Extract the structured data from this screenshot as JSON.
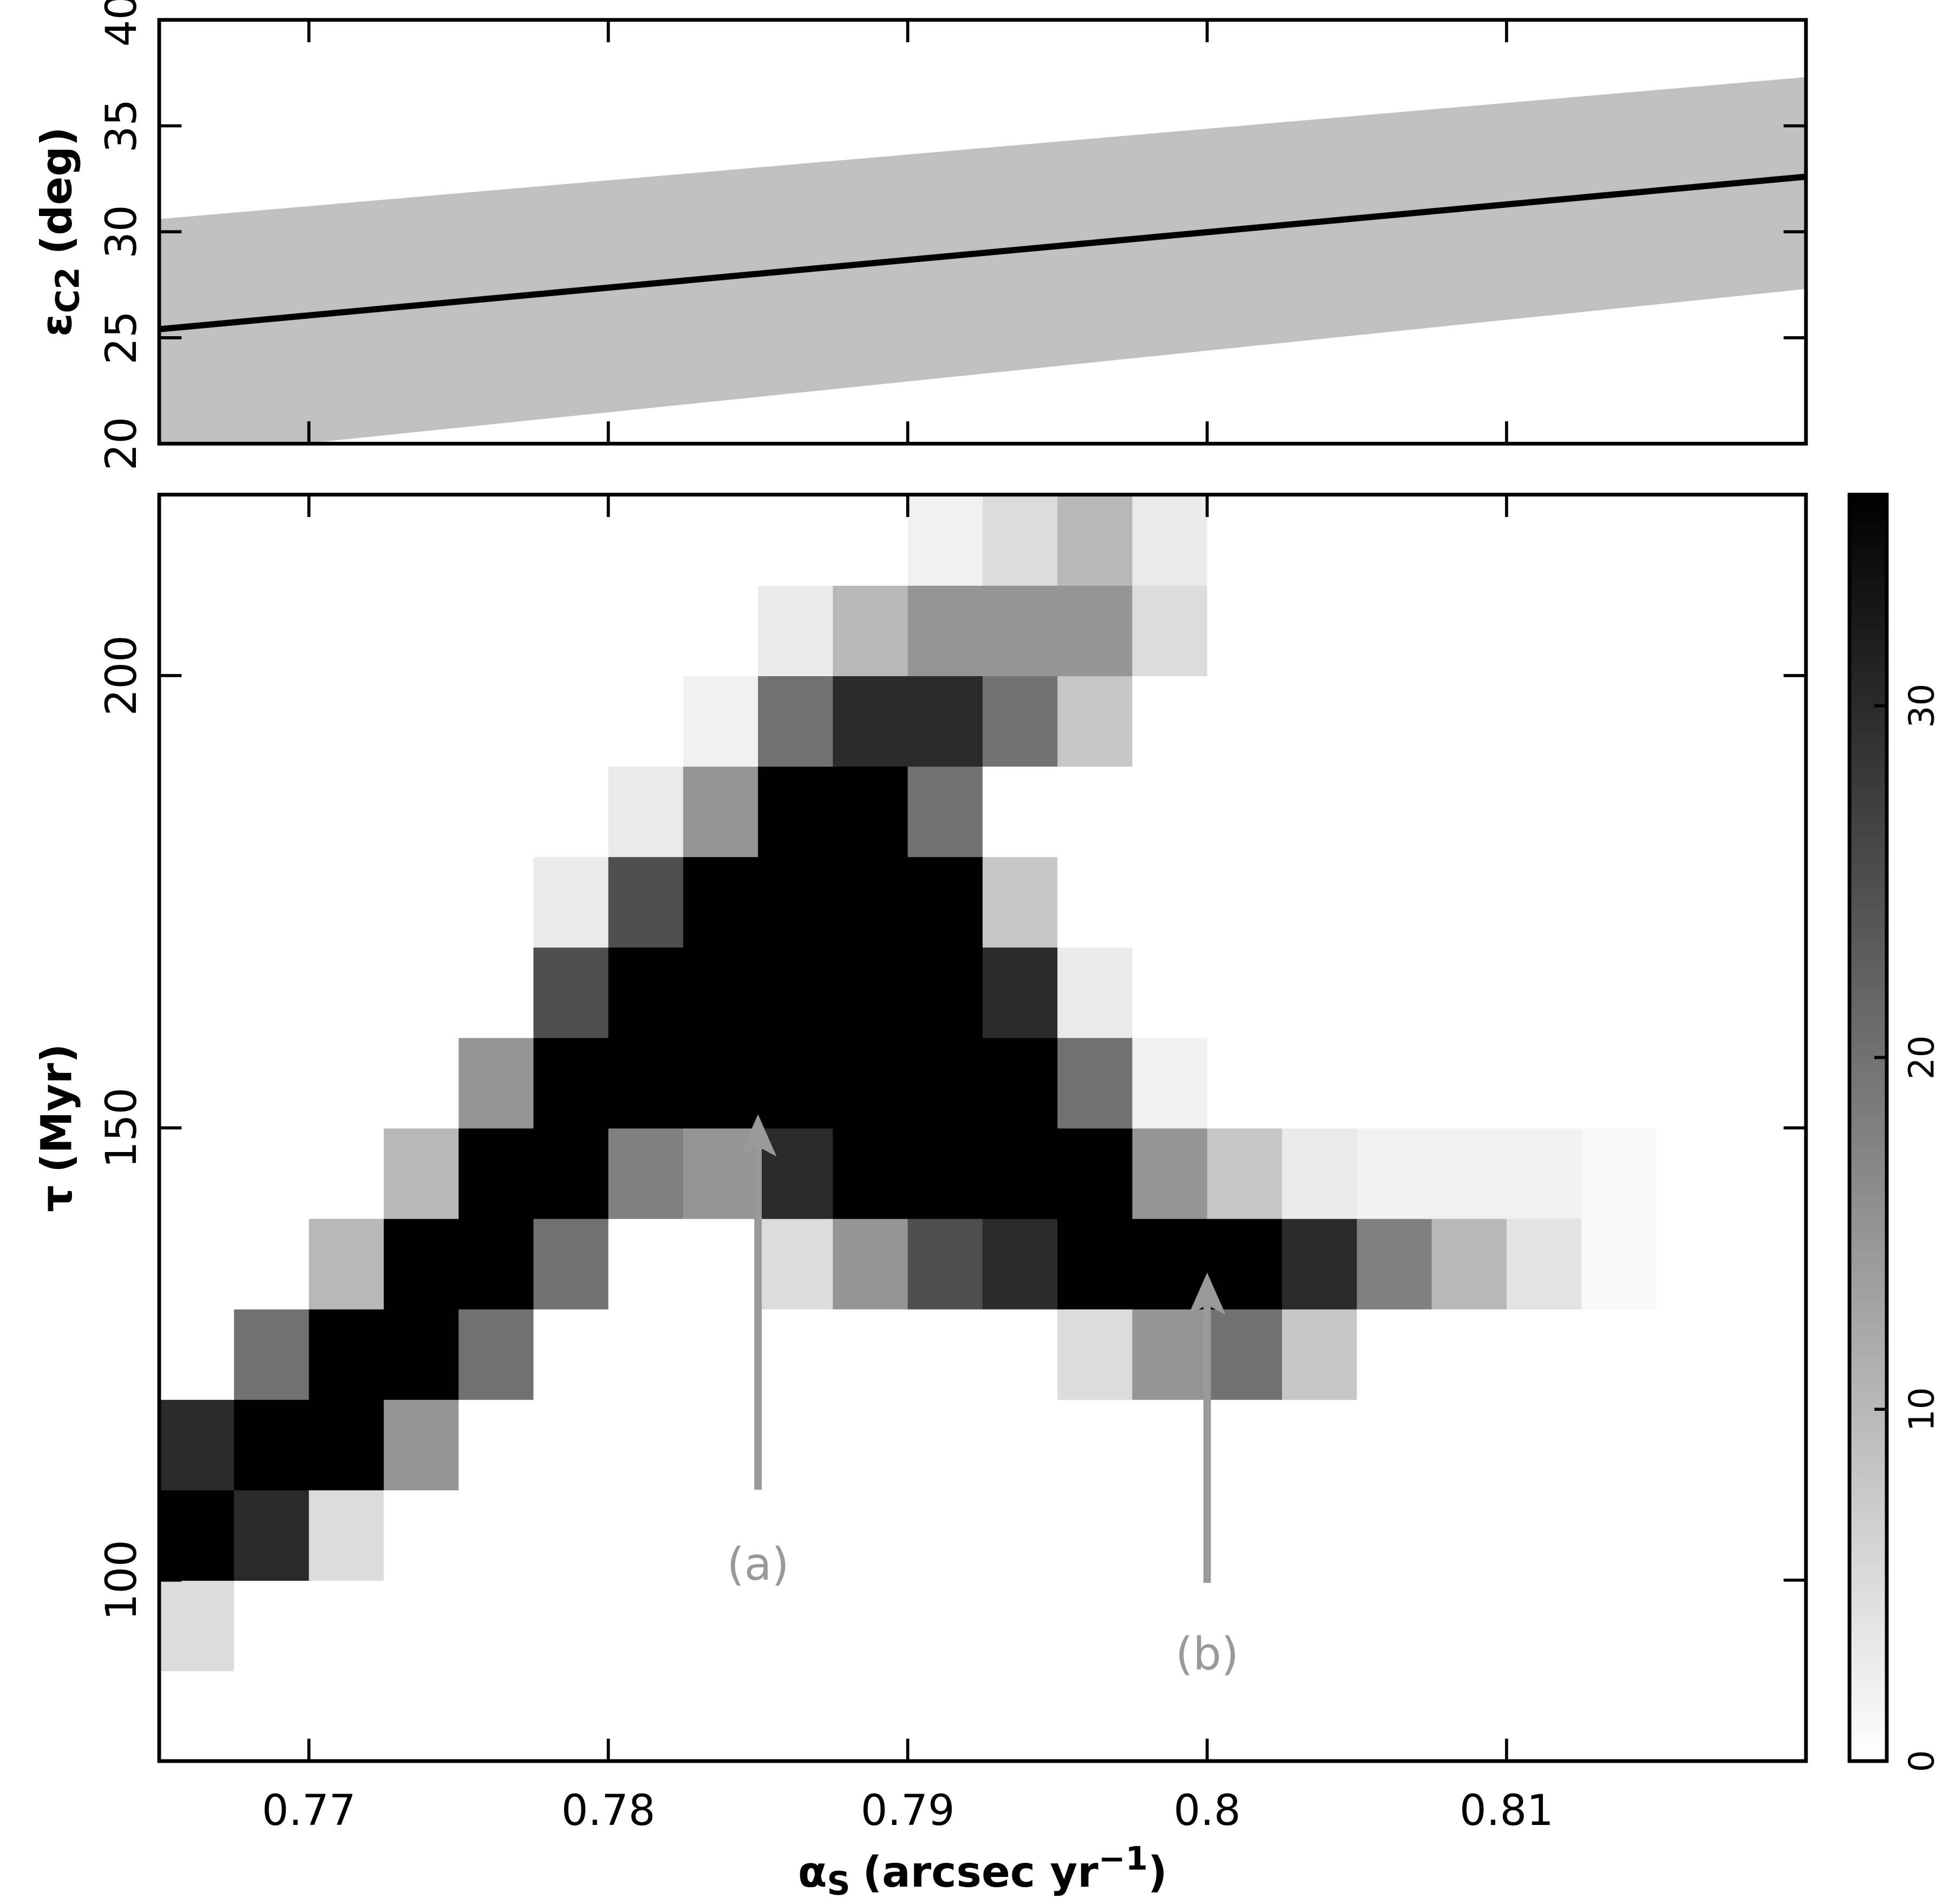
{
  "chart_data": [
    {
      "type": "band-line",
      "ylabel": {
        "symbol": "ε",
        "subscript": "C2",
        "unit": "(deg)"
      },
      "xlim": [
        0.765,
        0.82
      ],
      "ylim": [
        20,
        40
      ],
      "xticks": [
        0.77,
        0.78,
        0.79,
        0.8,
        0.81
      ],
      "yticks": [
        20,
        25,
        30,
        35,
        40
      ],
      "x": [
        0.765,
        0.82
      ],
      "band": {
        "color": "#c0c0c0",
        "lower": [
          19.3,
          27.3
        ],
        "upper": [
          30.6,
          37.3
        ]
      },
      "line": {
        "color": "#000000",
        "values": [
          25.4,
          32.6
        ]
      }
    },
    {
      "type": "heatmap",
      "xlabel": {
        "symbol": "α",
        "subscript": "S",
        "text": "(arcsec yr",
        "superscript": "−1",
        "close": ")"
      },
      "ylabel": {
        "symbol": "τ",
        "unit": "(Myr)"
      },
      "xlim": [
        0.765,
        0.82
      ],
      "ylim": [
        80,
        220
      ],
      "xticks": [
        0.77,
        0.78,
        0.79,
        0.8,
        0.81
      ],
      "yticks": [
        100,
        150,
        200
      ],
      "zlim": [
        0,
        36
      ],
      "zticks": [
        0,
        10,
        20,
        30
      ],
      "x_edges": [
        0.765,
        0.7675,
        0.77,
        0.7725,
        0.775,
        0.7775,
        0.78,
        0.7825,
        0.785,
        0.7875,
        0.79,
        0.7925,
        0.795,
        0.7975,
        0.8,
        0.8025,
        0.805,
        0.8075,
        0.81,
        0.8125,
        0.815,
        0.8175,
        0.82
      ],
      "y_edges": [
        80,
        90,
        100,
        110,
        120,
        130,
        140,
        150,
        160,
        170,
        180,
        190,
        200,
        210,
        220
      ],
      "z": [
        [
          0,
          0,
          0,
          0,
          0,
          0,
          0,
          0,
          0,
          0,
          0,
          0,
          0,
          0,
          0,
          0,
          0,
          0,
          0,
          0,
          0,
          0
        ],
        [
          5,
          0,
          0,
          0,
          0,
          0,
          0,
          0,
          0,
          0,
          0,
          0,
          0,
          0,
          0,
          0,
          0,
          0,
          0,
          0,
          0,
          0
        ],
        [
          36,
          30,
          5,
          0,
          0,
          0,
          0,
          0,
          0,
          0,
          0,
          0,
          0,
          0,
          0,
          0,
          0,
          0,
          0,
          0,
          0,
          0
        ],
        [
          30,
          36,
          36,
          15,
          0,
          0,
          0,
          0,
          0,
          0,
          0,
          0,
          0,
          0,
          0,
          0,
          0,
          0,
          0,
          0,
          0,
          0
        ],
        [
          0,
          20,
          36,
          36,
          20,
          0,
          0,
          0,
          0,
          0,
          0,
          0,
          5,
          15,
          20,
          8,
          0,
          0,
          0,
          0,
          0,
          0
        ],
        [
          0,
          0,
          10,
          36,
          36,
          20,
          0,
          0,
          5,
          15,
          25,
          30,
          36,
          36,
          36,
          30,
          18,
          10,
          4,
          1,
          0,
          0
        ],
        [
          0,
          0,
          0,
          10,
          36,
          36,
          18,
          15,
          30,
          36,
          36,
          36,
          36,
          15,
          8,
          3,
          2,
          2,
          2,
          1,
          0,
          0
        ],
        [
          0,
          0,
          0,
          0,
          15,
          36,
          36,
          36,
          36,
          36,
          36,
          36,
          20,
          2,
          0,
          0,
          0,
          0,
          0,
          0,
          0,
          0
        ],
        [
          0,
          0,
          0,
          0,
          0,
          25,
          36,
          36,
          36,
          36,
          36,
          30,
          3,
          0,
          0,
          0,
          0,
          0,
          0,
          0,
          0,
          0
        ],
        [
          0,
          0,
          0,
          0,
          0,
          3,
          25,
          36,
          36,
          36,
          36,
          8,
          0,
          0,
          0,
          0,
          0,
          0,
          0,
          0,
          0,
          0
        ],
        [
          0,
          0,
          0,
          0,
          0,
          0,
          3,
          15,
          36,
          36,
          20,
          0,
          0,
          0,
          0,
          0,
          0,
          0,
          0,
          0,
          0,
          0
        ],
        [
          0,
          0,
          0,
          0,
          0,
          0,
          0,
          2,
          20,
          30,
          30,
          20,
          8,
          0,
          0,
          0,
          0,
          0,
          0,
          0,
          0,
          0
        ],
        [
          0,
          0,
          0,
          0,
          0,
          0,
          0,
          0,
          3,
          10,
          15,
          15,
          15,
          5,
          0,
          0,
          0,
          0,
          0,
          0,
          0,
          0
        ],
        [
          0,
          0,
          0,
          0,
          0,
          0,
          0,
          0,
          0,
          0,
          2,
          5,
          10,
          3,
          0,
          0,
          0,
          0,
          0,
          0,
          0,
          0
        ]
      ],
      "annotations": [
        {
          "text": "(a)",
          "x": 0.785,
          "y": 101.4,
          "arrow": [
            110,
            151.5
          ]
        },
        {
          "text": "(b)",
          "x": 0.8,
          "y": 91.5,
          "arrow": [
            99.7,
            134
          ]
        }
      ],
      "annotation_color": "#999999"
    }
  ]
}
